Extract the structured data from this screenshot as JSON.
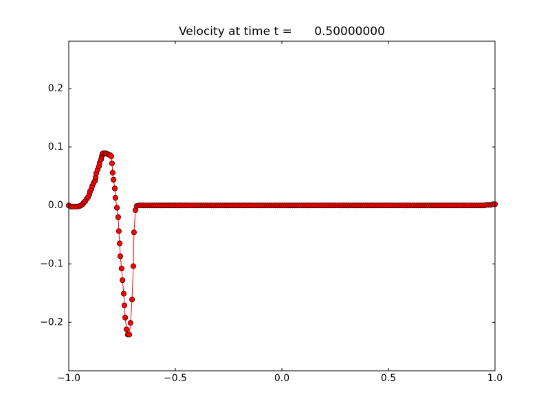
{
  "chart_data": {
    "type": "line",
    "title": "Velocity at time t =      0.50000000",
    "color": "#ff0000",
    "marker_edge_color": "#000000",
    "xlim": [
      -1,
      1
    ],
    "ylim": [
      -0.283,
      0.281
    ],
    "xticks": [
      {
        "value": -1,
        "label": "−1.0"
      },
      {
        "value": -0.5,
        "label": "−0.5"
      },
      {
        "value": 0,
        "label": "0.0"
      },
      {
        "value": 0.5,
        "label": "0.5"
      },
      {
        "value": 1,
        "label": "1.0"
      }
    ],
    "yticks": [
      {
        "value": -0.2,
        "label": "−0.2"
      },
      {
        "value": -0.1,
        "label": "−0.1"
      },
      {
        "value": 0,
        "label": "0.0"
      },
      {
        "value": 0.1,
        "label": "0.1"
      },
      {
        "value": 0.2,
        "label": "0.2"
      }
    ],
    "x": [
      -1.0,
      -0.99,
      -0.981,
      -0.968,
      -0.958,
      -0.948,
      -0.942,
      -0.935,
      -0.929,
      -0.923,
      -0.916,
      -0.91,
      -0.903,
      -0.9,
      -0.894,
      -0.89,
      -0.884,
      -0.877,
      -0.874,
      -0.871,
      -0.865,
      -0.858,
      -0.855,
      -0.848,
      -0.845,
      -0.842,
      -0.839,
      -0.832,
      -0.826,
      -0.819,
      -0.813,
      -0.806,
      -0.8,
      -0.797,
      -0.794,
      -0.79,
      -0.784,
      -0.781,
      -0.774,
      -0.768,
      -0.765,
      -0.761,
      -0.758,
      -0.752,
      -0.748,
      -0.742,
      -0.739,
      -0.735,
      -0.729,
      -0.723,
      -0.716,
      -0.71,
      -0.703,
      -0.697,
      -0.694,
      -0.687,
      -0.681,
      -0.67,
      -0.66,
      -0.65,
      -0.64,
      -0.63,
      -0.62,
      -0.61,
      -0.6,
      -0.59,
      -0.58,
      -0.57,
      -0.56,
      -0.55,
      -0.54,
      -0.53,
      -0.52,
      -0.51,
      -0.5,
      -0.49,
      -0.48,
      -0.47,
      -0.46,
      -0.45,
      -0.44,
      -0.43,
      -0.42,
      -0.41,
      -0.4,
      -0.39,
      -0.38,
      -0.37,
      -0.36,
      -0.35,
      -0.34,
      -0.33,
      -0.32,
      -0.31,
      -0.3,
      -0.29,
      -0.28,
      -0.27,
      -0.26,
      -0.25,
      -0.24,
      -0.23,
      -0.22,
      -0.21,
      -0.2,
      -0.19,
      -0.18,
      -0.17,
      -0.16,
      -0.15,
      -0.14,
      -0.13,
      -0.12,
      -0.11,
      -0.1,
      -0.09,
      -0.08,
      -0.07,
      -0.06,
      -0.05,
      -0.04,
      -0.03,
      -0.02,
      -0.01,
      0,
      0.01,
      0.02,
      0.03,
      0.04,
      0.05,
      0.06,
      0.07,
      0.08,
      0.09,
      0.1,
      0.11,
      0.12,
      0.13,
      0.14,
      0.15,
      0.16,
      0.17,
      0.18,
      0.19,
      0.2,
      0.21,
      0.22,
      0.23,
      0.24,
      0.25,
      0.26,
      0.27,
      0.28,
      0.29,
      0.3,
      0.31,
      0.32,
      0.33,
      0.34,
      0.35,
      0.36,
      0.37,
      0.38,
      0.39,
      0.4,
      0.41,
      0.42,
      0.43,
      0.44,
      0.45,
      0.46,
      0.47,
      0.48,
      0.49,
      0.5,
      0.51,
      0.52,
      0.53,
      0.54,
      0.55,
      0.56,
      0.57,
      0.58,
      0.59,
      0.6,
      0.61,
      0.62,
      0.63,
      0.64,
      0.65,
      0.66,
      0.67,
      0.68,
      0.69,
      0.7,
      0.71,
      0.72,
      0.73,
      0.74,
      0.75,
      0.76,
      0.77,
      0.78,
      0.79,
      0.8,
      0.81,
      0.82,
      0.83,
      0.84,
      0.85,
      0.86,
      0.87,
      0.88,
      0.89,
      0.9,
      0.91,
      0.92,
      0.93,
      0.94,
      0.95,
      0.96,
      0.97,
      0.98,
      0.99,
      1.0
    ],
    "values": [
      0,
      -0.002,
      -0.002,
      -0.002,
      -0.002,
      -0.001,
      0,
      0.002,
      0.005,
      0.007,
      0.011,
      0.014,
      0.019,
      0.024,
      0.028,
      0.033,
      0.038,
      0.042,
      0.048,
      0.055,
      0.061,
      0.067,
      0.073,
      0.079,
      0.084,
      0.088,
      0.089,
      0.089,
      0.089,
      0.088,
      0.087,
      0.086,
      0.084,
      0.072,
      0.056,
      0.044,
      0.029,
      0.013,
      -0.004,
      -0.02,
      -0.044,
      -0.065,
      -0.087,
      -0.108,
      -0.128,
      -0.151,
      -0.171,
      -0.192,
      -0.212,
      -0.221,
      -0.221,
      -0.201,
      -0.161,
      -0.104,
      -0.046,
      -0.008,
      -0.001,
      0,
      0,
      0,
      0,
      0,
      0,
      0,
      0,
      0,
      0,
      0,
      0,
      0,
      0,
      0,
      0,
      0,
      0,
      0,
      0,
      0,
      0,
      0,
      0,
      0,
      0,
      0,
      0,
      0,
      0,
      0,
      0,
      0,
      0,
      0,
      0,
      0,
      0,
      0,
      0,
      0,
      0,
      0,
      0,
      0,
      0,
      0,
      0,
      0,
      0,
      0,
      0,
      0,
      0,
      0,
      0,
      0,
      0,
      0,
      0,
      0,
      0,
      0,
      0,
      0,
      0,
      0,
      0,
      0,
      0,
      0,
      0,
      0,
      0,
      0,
      0,
      0,
      0,
      0,
      0,
      0,
      0,
      0,
      0,
      0,
      0,
      0,
      0,
      0,
      0,
      0,
      0,
      0,
      0,
      0,
      0,
      0,
      0,
      0,
      0,
      0,
      0,
      0,
      0,
      0,
      0,
      0,
      0,
      0,
      0,
      0,
      0,
      0,
      0,
      0,
      0,
      0,
      0,
      0,
      0,
      0,
      0,
      0,
      0,
      0,
      0,
      0,
      0,
      0,
      0,
      0,
      0,
      0,
      0,
      0,
      0,
      0,
      0,
      0,
      0,
      0,
      0,
      0,
      0,
      0,
      0,
      0,
      0,
      0,
      0,
      0,
      0,
      0,
      0,
      0,
      0,
      0,
      0,
      0,
      0,
      0,
      0,
      0,
      0.001,
      0.001,
      0.001,
      0.002,
      0.002
    ]
  }
}
